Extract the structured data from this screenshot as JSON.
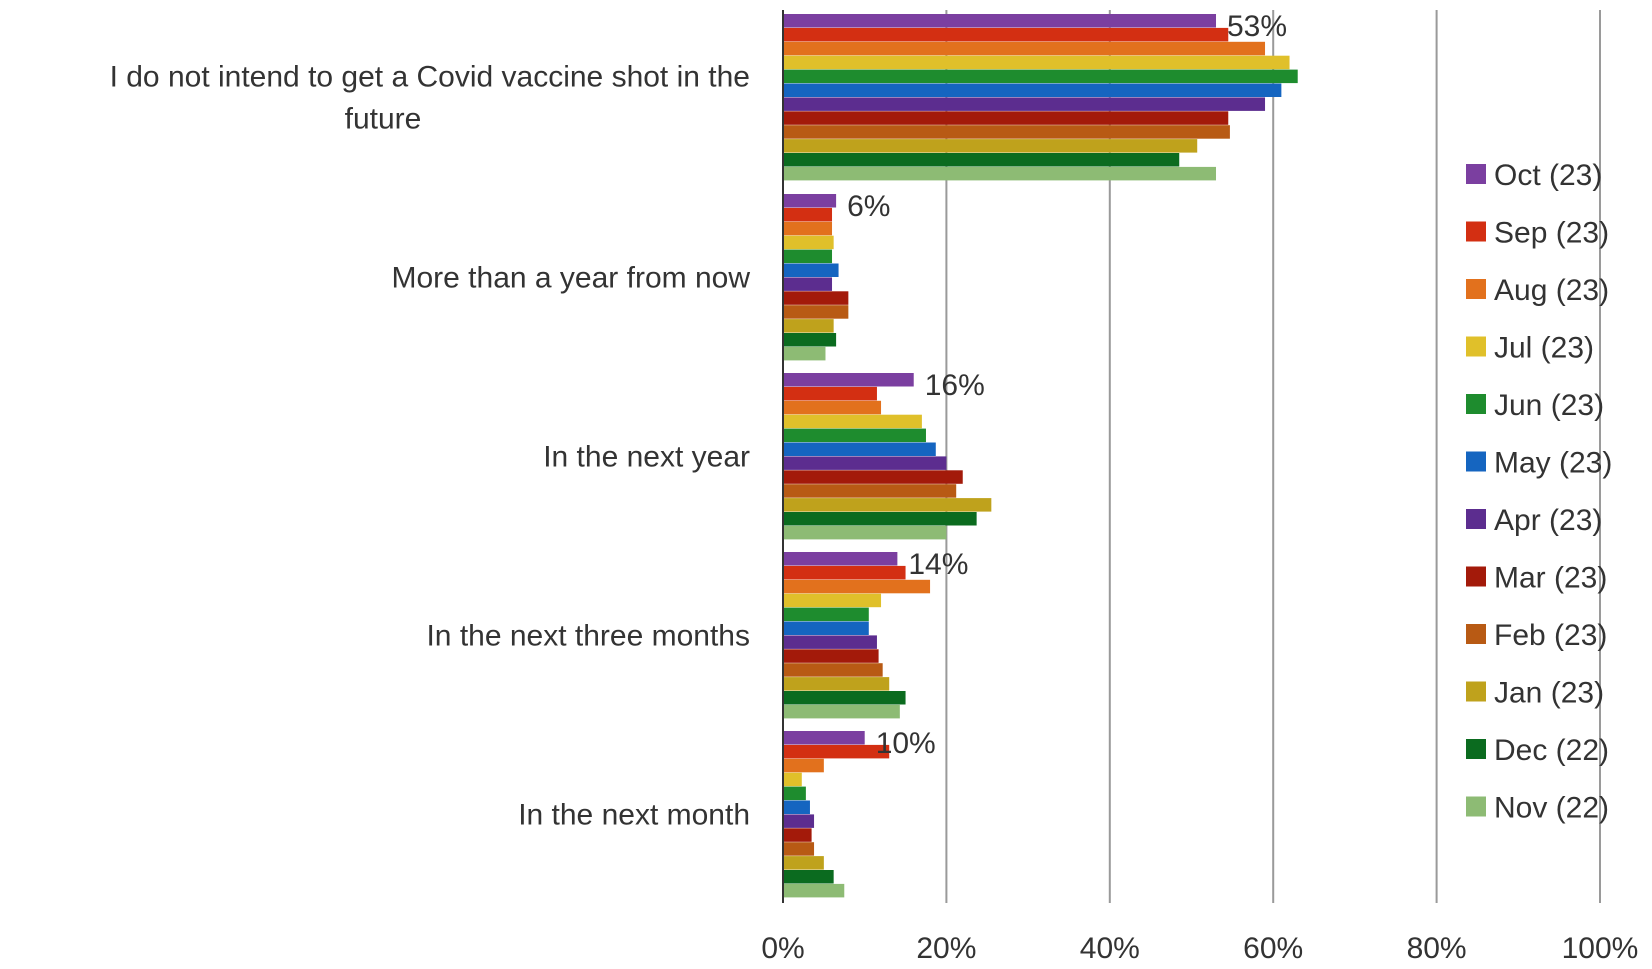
{
  "chart_data": {
    "type": "bar",
    "orientation": "horizontal",
    "categories": [
      "I do not intend to get a Covid vaccine shot in the future",
      "More than a year from now",
      "In the next year",
      "In the next three months",
      "In the next month"
    ],
    "category_lines": [
      [
        "I do not intend to get a Covid vaccine shot in the",
        "future"
      ],
      [
        "More than a year from now"
      ],
      [
        "In the next year"
      ],
      [
        "In the next three months"
      ],
      [
        "In the next month"
      ]
    ],
    "series": [
      {
        "name": "Oct (23)",
        "color": "#7b3fa0",
        "values": [
          53,
          6.5,
          16,
          14,
          10
        ]
      },
      {
        "name": "Sep (23)",
        "color": "#d32f12",
        "values": [
          54.5,
          6,
          11.5,
          15,
          13
        ]
      },
      {
        "name": "Aug (23)",
        "color": "#e2711d",
        "values": [
          59,
          6,
          12,
          18,
          5
        ]
      },
      {
        "name": "Jul (23)",
        "color": "#e0c02a",
        "values": [
          62,
          6.2,
          17,
          12,
          2.3
        ]
      },
      {
        "name": "Jun (23)",
        "color": "#1e8c2e",
        "values": [
          63,
          6,
          17.5,
          10.5,
          2.8
        ]
      },
      {
        "name": "May (23)",
        "color": "#1565c0",
        "values": [
          61,
          6.8,
          18.7,
          10.5,
          3.3
        ]
      },
      {
        "name": "Apr (23)",
        "color": "#5c2d8f",
        "values": [
          59,
          6,
          20,
          11.5,
          3.8
        ]
      },
      {
        "name": "Mar (23)",
        "color": "#a31a0a",
        "values": [
          54.5,
          8,
          22,
          11.7,
          3.5
        ]
      },
      {
        "name": "Feb (23)",
        "color": "#b85a14",
        "values": [
          54.7,
          8,
          21.2,
          12.2,
          3.8
        ]
      },
      {
        "name": "Jan (23)",
        "color": "#bfa21c",
        "values": [
          50.7,
          6.2,
          25.5,
          13,
          5
        ]
      },
      {
        "name": "Dec (22)",
        "color": "#0b6b1f",
        "values": [
          48.5,
          6.5,
          23.7,
          15,
          6.2
        ]
      },
      {
        "name": "Nov (22)",
        "color": "#8dbb74",
        "values": [
          53,
          5.2,
          20,
          14.3,
          7.5
        ]
      }
    ],
    "data_labels": [
      "53%",
      "6%",
      "16%",
      "14%",
      "10%"
    ],
    "x_ticks": [
      "0%",
      "20%",
      "40%",
      "60%",
      "80%",
      "100%"
    ],
    "xlim": [
      0,
      100
    ],
    "grid": true,
    "legend_position": "right",
    "title": "",
    "xlabel": "",
    "ylabel": ""
  }
}
